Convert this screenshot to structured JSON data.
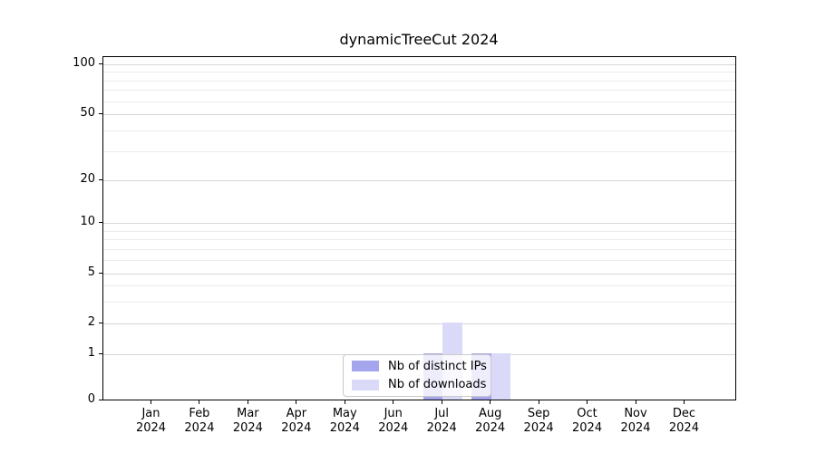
{
  "chart_data": {
    "type": "bar",
    "title": "dynamicTreeCut 2024",
    "categories": [
      "Jan",
      "Feb",
      "Mar",
      "Apr",
      "May",
      "Jun",
      "Jul",
      "Aug",
      "Sep",
      "Oct",
      "Nov",
      "Dec"
    ],
    "category_year": "2024",
    "series": [
      {
        "name": "Nb of distinct IPs",
        "color": "#a5a5ed",
        "values": [
          0,
          0,
          0,
          0,
          0,
          0,
          1,
          1,
          0,
          0,
          0,
          0
        ]
      },
      {
        "name": "Nb of downloads",
        "color": "#dadaf8",
        "values": [
          0,
          0,
          0,
          0,
          0,
          0,
          2,
          1,
          0,
          0,
          0,
          0
        ]
      }
    ],
    "yscale": "symlog",
    "ylim": [
      0,
      110
    ],
    "ytick_labels": [
      "0",
      "1",
      "2",
      "5",
      "10",
      "20",
      "50",
      "100"
    ],
    "ytick_values": [
      0,
      1,
      2,
      5,
      10,
      20,
      50,
      100
    ],
    "yminor_values": [
      3,
      4,
      6,
      7,
      8,
      9,
      30,
      40,
      60,
      70,
      80,
      90
    ],
    "grid": "horizontal",
    "legend_position": "inside-bottom-center"
  },
  "colors": {
    "background": "#ffffff",
    "axis": "#000000",
    "grid_major": "#d6d6d6",
    "grid_minor": "#ebebeb",
    "legend_border": "#c9c9c9",
    "text": "#000000"
  }
}
